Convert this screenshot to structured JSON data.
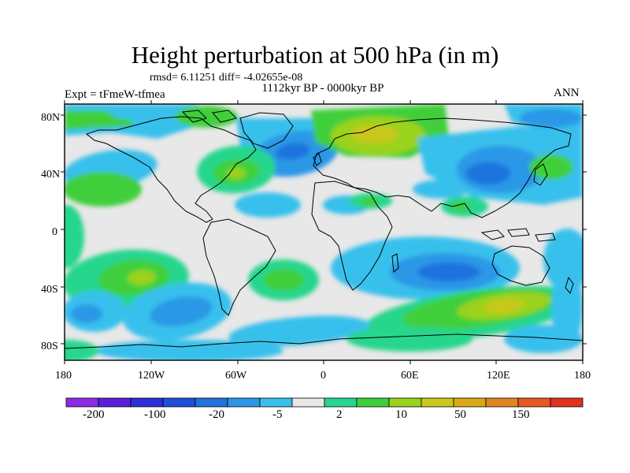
{
  "title": "Height perturbation at 500 hPa (in m)",
  "stats": "rmsd= 6.11251 diff= -4.02655e-08",
  "period": "1112kyr BP - 0000kyr BP",
  "experiment": "Expt = tFmeW-tfmea",
  "season": "ANN",
  "lat_labels": [
    "80N",
    "40N",
    "0",
    "40S",
    "80S"
  ],
  "lon_labels": [
    "180",
    "120W",
    "60W",
    "0",
    "60E",
    "120E",
    "180"
  ],
  "colorbar": {
    "colors": [
      "#8b2be2",
      "#5a1fd6",
      "#2e2ed8",
      "#1c50d8",
      "#1f73dd",
      "#2a98e6",
      "#37c0ec",
      "#e8e8e8",
      "#27d68c",
      "#3fcf3b",
      "#9ad21d",
      "#c8c81e",
      "#dba81c",
      "#e2841f",
      "#e45a20",
      "#e03220"
    ],
    "tick_labels": [
      "-200",
      "-100",
      "-20",
      "-5",
      "2",
      "10",
      "50",
      "150"
    ]
  }
}
